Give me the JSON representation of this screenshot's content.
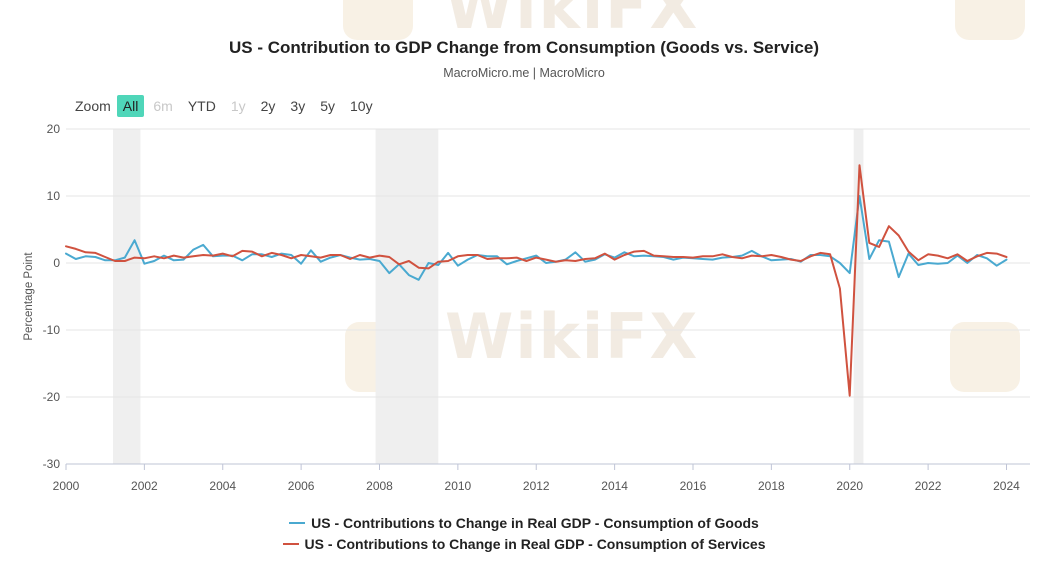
{
  "header": {
    "title": "US - Contribution to GDP Change from Consumption (Goods vs. Service)",
    "subtitle": "MacroMicro.me | MacroMicro"
  },
  "zoom": {
    "label": "Zoom",
    "buttons": [
      "All",
      "6m",
      "YTD",
      "1y",
      "2y",
      "3y",
      "5y",
      "10y"
    ],
    "selected": "All",
    "disabled": [
      "6m",
      "1y"
    ]
  },
  "watermark": "WikiFX",
  "colors": {
    "goods": "#4aa9d0",
    "services": "#d0523f",
    "accent": "#4fd6b9",
    "recession": "#efefef"
  },
  "chart_data": {
    "type": "line",
    "title": "US - Contribution to GDP Change from Consumption (Goods vs. Service)",
    "ylabel": "Percentage Point",
    "xlabel": "",
    "ylim": [
      -30,
      20
    ],
    "yticks": [
      20,
      10,
      0,
      -10,
      -20,
      -30
    ],
    "xlim": [
      2000,
      2024.6
    ],
    "xticks": [
      "2000",
      "2002",
      "2004",
      "2006",
      "2008",
      "2010",
      "2012",
      "2014",
      "2016",
      "2018",
      "2020",
      "2022",
      "2024"
    ],
    "recessions": [
      [
        2001.2,
        2001.9
      ],
      [
        2007.9,
        2009.5
      ],
      [
        2020.1,
        2020.35
      ]
    ],
    "x_start": 2000.0,
    "x_step": 0.25,
    "series": [
      {
        "name": "US - Contributions to Change in Real GDP - Consumption of Goods",
        "color": "#4aa9d0",
        "values": [
          1.4,
          0.6,
          1.0,
          0.9,
          0.4,
          0.4,
          0.8,
          3.4,
          -0.1,
          0.3,
          1.1,
          0.4,
          0.5,
          2.0,
          2.7,
          1.0,
          1.1,
          1.1,
          0.4,
          1.3,
          1.3,
          0.9,
          1.4,
          1.2,
          -0.1,
          1.9,
          0.2,
          0.8,
          1.2,
          0.8,
          0.5,
          0.6,
          0.3,
          -1.5,
          -0.2,
          -1.8,
          -2.5,
          0.0,
          -0.3,
          1.5,
          -0.4,
          0.5,
          1.2,
          1.0,
          1.0,
          -0.2,
          0.3,
          0.7,
          1.1,
          0.0,
          0.2,
          0.5,
          1.6,
          0.2,
          0.5,
          1.3,
          0.8,
          1.6,
          1.0,
          1.1,
          1.0,
          0.9,
          0.5,
          0.8,
          0.7,
          0.6,
          0.5,
          0.8,
          0.9,
          1.1,
          1.8,
          1.0,
          0.4,
          0.5,
          0.6,
          0.2,
          1.2,
          1.2,
          1.0,
          0.0,
          -1.5,
          10.0,
          0.6,
          3.4,
          3.2,
          -2.1,
          1.4,
          -0.3,
          0.0,
          -0.1,
          0.0,
          1.1,
          0.0,
          1.2,
          0.7,
          -0.4,
          0.5
        ]
      },
      {
        "name": "US - Contributions to Change in Real GDP - Consumption of Services",
        "color": "#d0523f",
        "values": [
          2.5,
          2.1,
          1.6,
          1.5,
          0.9,
          0.3,
          0.3,
          0.8,
          0.7,
          1.0,
          0.7,
          1.1,
          0.8,
          1.0,
          1.2,
          1.1,
          1.4,
          1.0,
          1.8,
          1.7,
          1.0,
          1.5,
          1.2,
          0.7,
          1.2,
          1.0,
          0.8,
          1.2,
          1.2,
          0.6,
          1.2,
          0.8,
          1.1,
          0.9,
          -0.2,
          0.3,
          -0.7,
          -0.8,
          0.2,
          0.3,
          1.0,
          1.2,
          1.2,
          0.6,
          0.7,
          0.7,
          0.8,
          0.3,
          0.8,
          0.5,
          0.2,
          0.4,
          0.3,
          0.6,
          0.7,
          1.4,
          0.5,
          1.2,
          1.7,
          1.8,
          1.1,
          1.0,
          0.9,
          0.9,
          0.8,
          1.0,
          1.0,
          1.3,
          0.9,
          0.7,
          1.1,
          1.0,
          1.2,
          0.9,
          0.5,
          0.3,
          1.0,
          1.5,
          1.3,
          -3.8,
          -19.8,
          14.6,
          3.0,
          2.4,
          5.5,
          4.1,
          1.7,
          0.4,
          1.3,
          1.1,
          0.7,
          1.3,
          0.3,
          1.0,
          1.5,
          1.4,
          0.9
        ]
      }
    ],
    "legend": [
      "US - Contributions to Change in Real GDP - Consumption of Goods",
      "US - Contributions to Change in Real GDP - Consumption of Services"
    ],
    "legend_position": "bottom-center",
    "grid": true
  }
}
